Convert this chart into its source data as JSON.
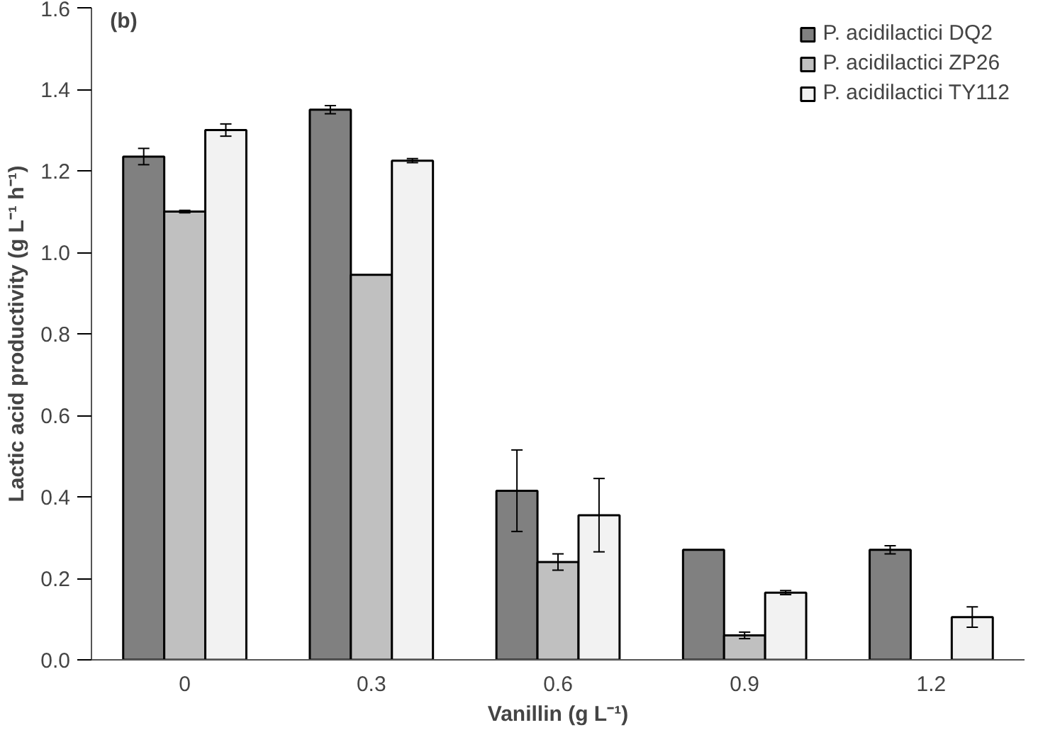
{
  "chart_data": {
    "type": "bar",
    "xlabel": "Vanillin (g L⁻¹)",
    "ylabel": "Lactic acid productivity (g L⁻¹ h⁻¹)",
    "annotations": [
      "(b)"
    ],
    "categories": [
      "0",
      "0.3",
      "0.6",
      "0.9",
      "1.2"
    ],
    "series": [
      {
        "name": "P. acidilactici DQ2",
        "color": "#808080",
        "values": [
          1.235,
          1.35,
          0.415,
          0.27,
          0.27
        ],
        "errors": [
          0.02,
          0.01,
          0.1,
          null,
          0.01
        ]
      },
      {
        "name": "P. acidilactici ZP26",
        "color": "#c0c0c0",
        "values": [
          1.1,
          0.945,
          0.24,
          0.06,
          null
        ],
        "errors": [
          0.003,
          null,
          0.02,
          0.008,
          null
        ]
      },
      {
        "name": "P. acidilactici TY112",
        "color": "#f2f2f2",
        "values": [
          1.3,
          1.225,
          0.355,
          0.165,
          0.105
        ],
        "errors": [
          0.015,
          0.005,
          0.09,
          0.005,
          0.025
        ]
      }
    ],
    "ylim": [
      0,
      1.6
    ],
    "yticks": [
      {
        "value": 0,
        "label": "0.0"
      },
      {
        "value": 0.2,
        "label": "0.2"
      },
      {
        "value": 0.4,
        "label": "0.4"
      },
      {
        "value": 0.6,
        "label": "0.6"
      },
      {
        "value": 0.8,
        "label": "0.8"
      },
      {
        "value": 1,
        "label": "1.0"
      },
      {
        "value": 1.2,
        "label": "1.2"
      },
      {
        "value": 1.4,
        "label": "1.4"
      },
      {
        "value": 1.6,
        "label": "1.6"
      }
    ],
    "grid": false,
    "legend": "top right"
  }
}
